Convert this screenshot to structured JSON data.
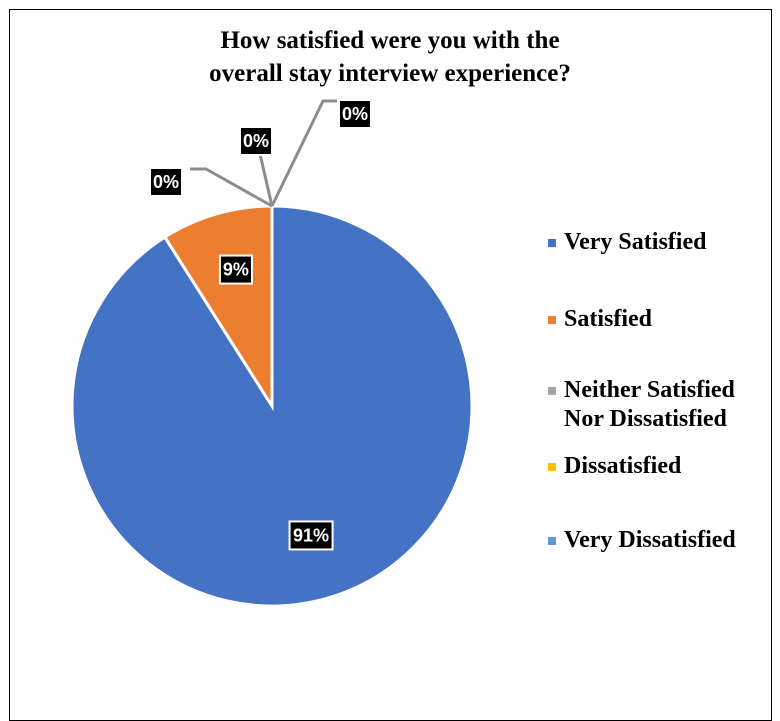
{
  "chart_data": {
    "type": "pie",
    "title": "How satisfied were you with the overall stay interview experience?",
    "title_lines": [
      "How satisfied were you with the",
      "overall stay interview experience?"
    ],
    "categories": [
      "Very Satisfied",
      "Satisfied",
      "Neither Satisfied Nor Dissatisfied",
      "Dissatisfied",
      "Very Dissatisfied"
    ],
    "legend_lines": [
      [
        "Very Satisfied"
      ],
      [
        "Satisfied"
      ],
      [
        "Neither Satisfied",
        "Nor Dissatisfied"
      ],
      [
        "Dissatisfied"
      ],
      [
        "Very Dissatisfied"
      ]
    ],
    "values": [
      91,
      9,
      0,
      0,
      0
    ],
    "data_labels": [
      "91%",
      "9%",
      "0%",
      "0%",
      "0%"
    ],
    "colors": [
      "#4472C4",
      "#ED7D31",
      "#A5A5A5",
      "#FFC000",
      "#5B9BD5"
    ],
    "legend_position": "right"
  }
}
